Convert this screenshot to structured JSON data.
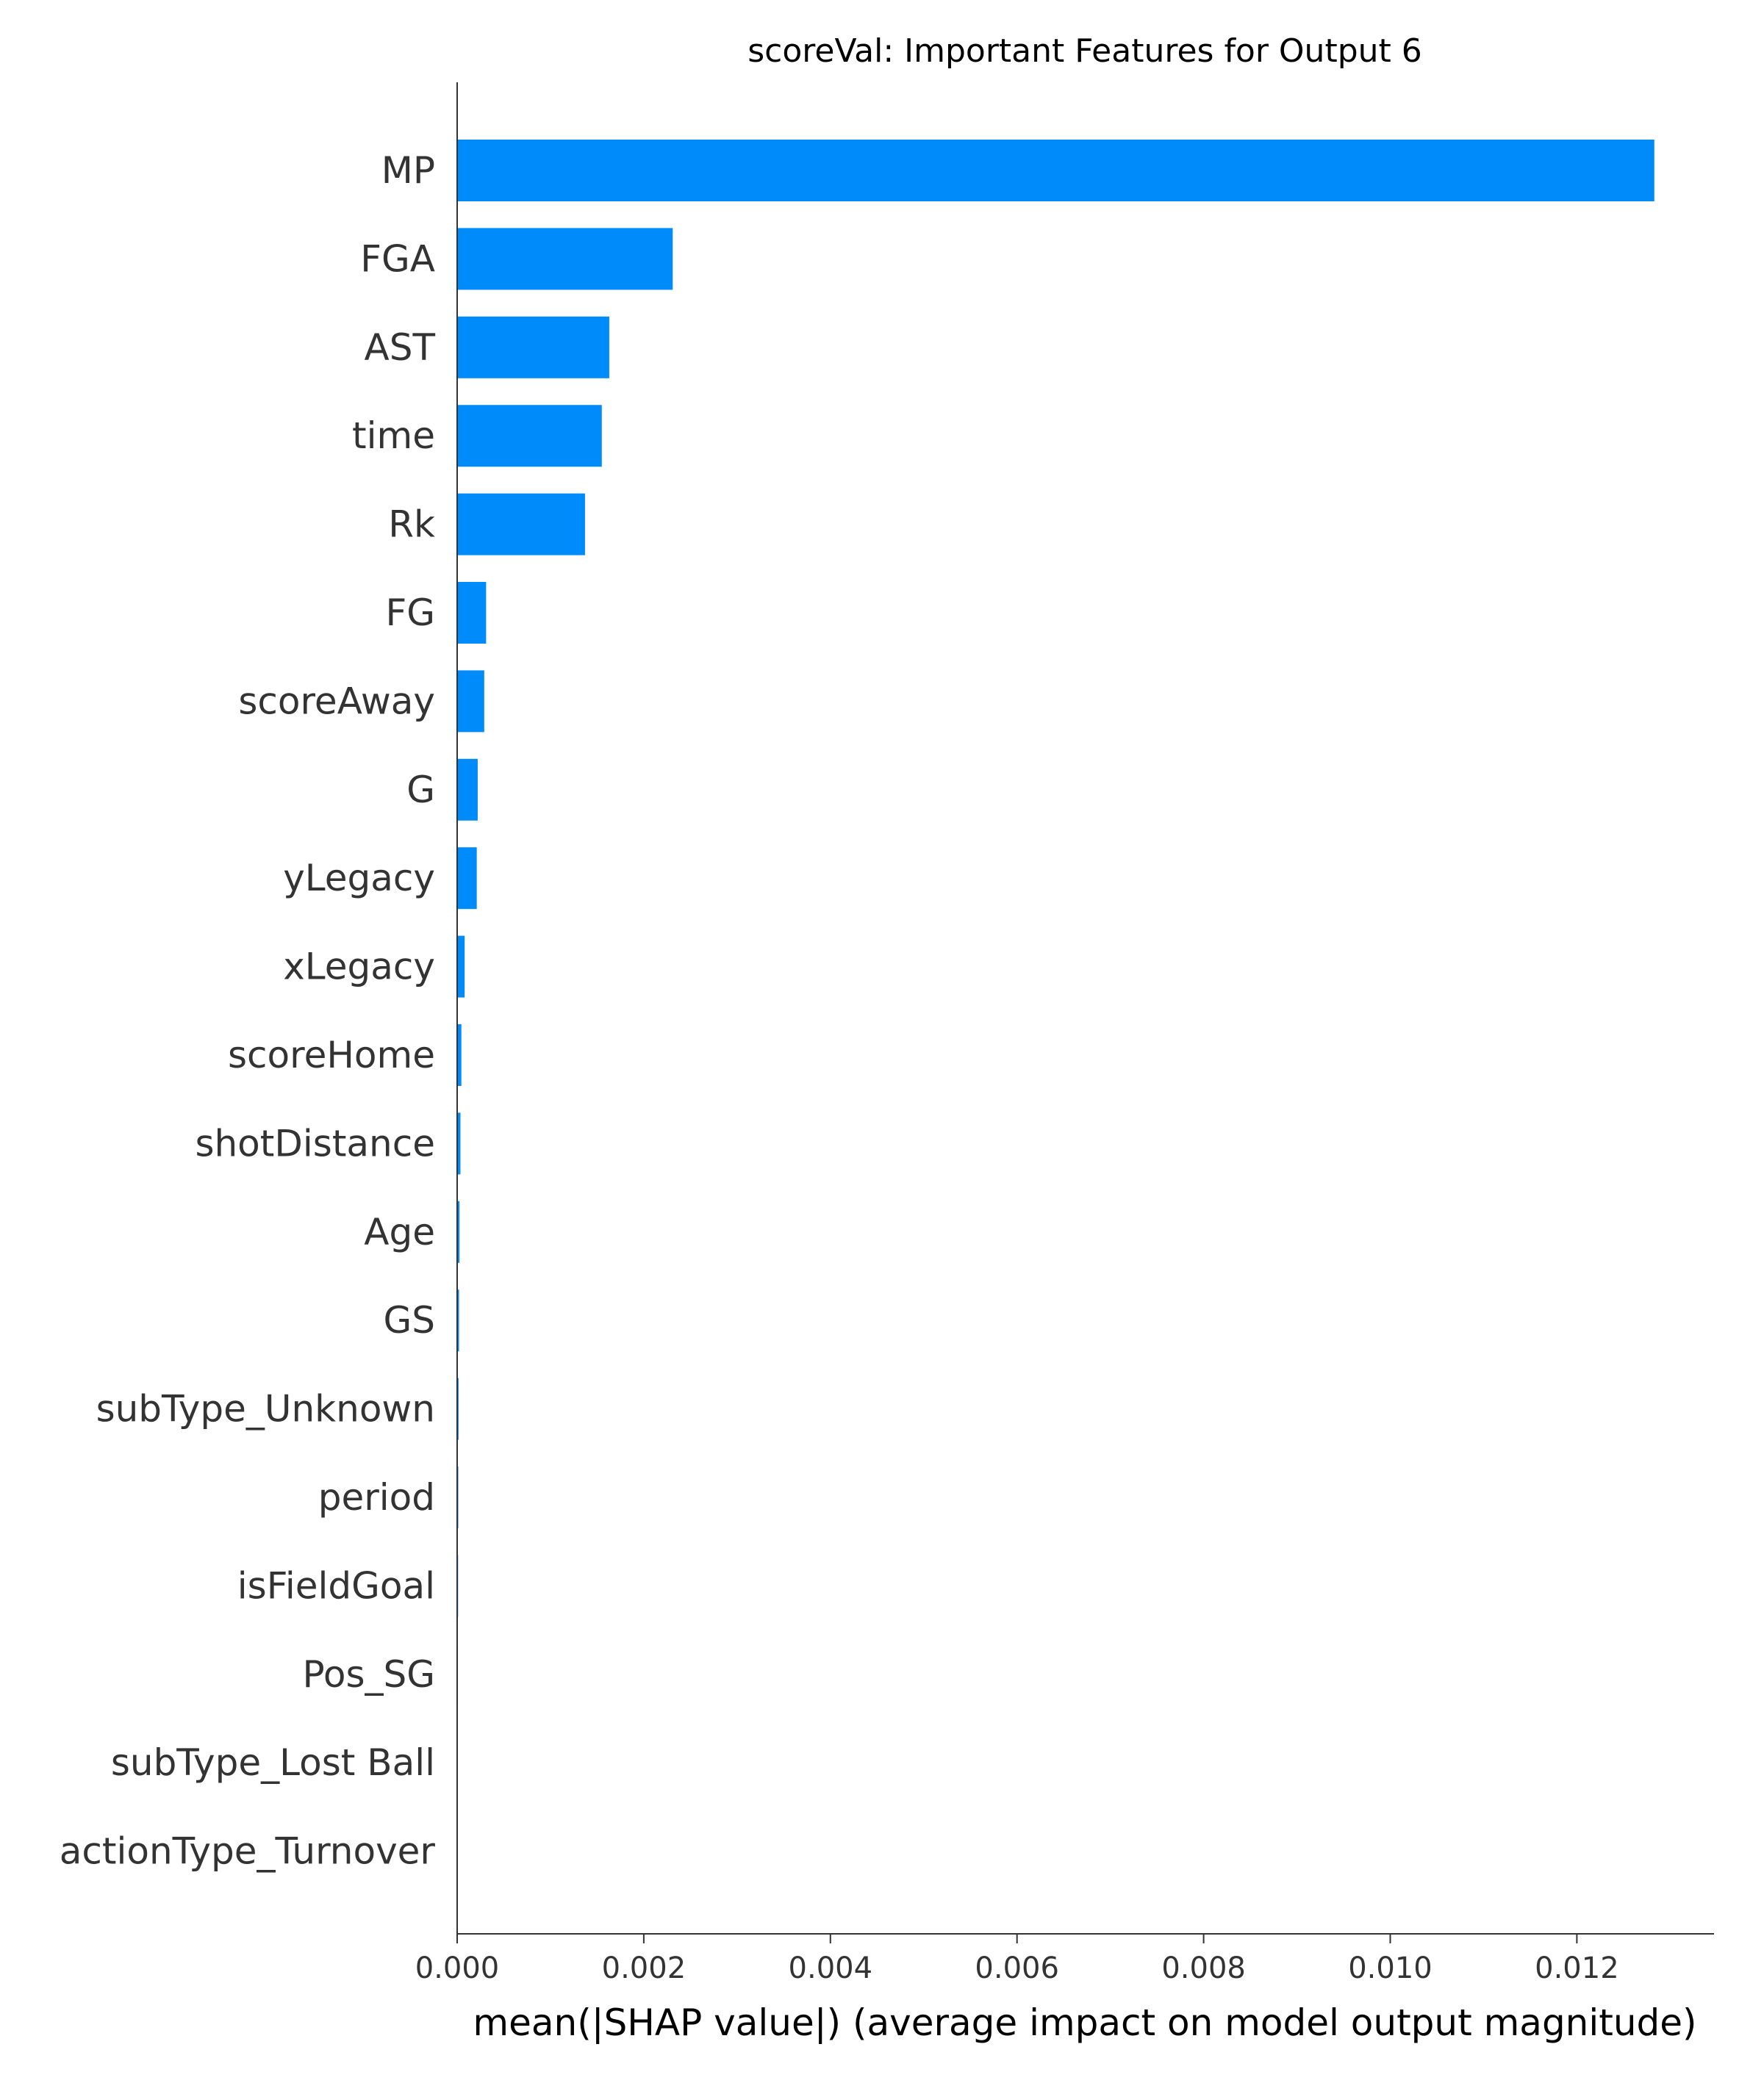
{
  "chart_data": {
    "type": "bar",
    "orientation": "horizontal",
    "title": "scoreVal: Important Features for Output 6",
    "xlabel": "mean(|SHAP value|) (average impact on model output magnitude)",
    "ylabel": "",
    "xlim": [
      0,
      0.01347
    ],
    "xticks": [
      0,
      0.002,
      0.004,
      0.006,
      0.008,
      0.01,
      0.012
    ],
    "xtick_labels": [
      "0.000",
      "0.002",
      "0.004",
      "0.006",
      "0.008",
      "0.010",
      "0.012"
    ],
    "grid": false,
    "bar_color": "#008bfb",
    "categories": [
      "MP",
      "FGA",
      "AST",
      "time",
      "Rk",
      "FG",
      "scoreAway",
      "G",
      "yLegacy",
      "xLegacy",
      "scoreHome",
      "shotDistance",
      "Age",
      "GS",
      "subType_Unknown",
      "period",
      "isFieldGoal",
      "Pos_SG",
      "subType_Lost Ball",
      "actionType_Turnover"
    ],
    "values": [
      0.01283,
      0.00231,
      0.00163,
      0.00155,
      0.00137,
      0.00031,
      0.00029,
      0.00022,
      0.00021,
      8e-05,
      4.5e-05,
      3.5e-05,
      2.5e-05,
      2e-05,
      1.5e-05,
      1.2e-05,
      1e-05,
      8e-06,
      6e-06,
      4e-06
    ]
  }
}
